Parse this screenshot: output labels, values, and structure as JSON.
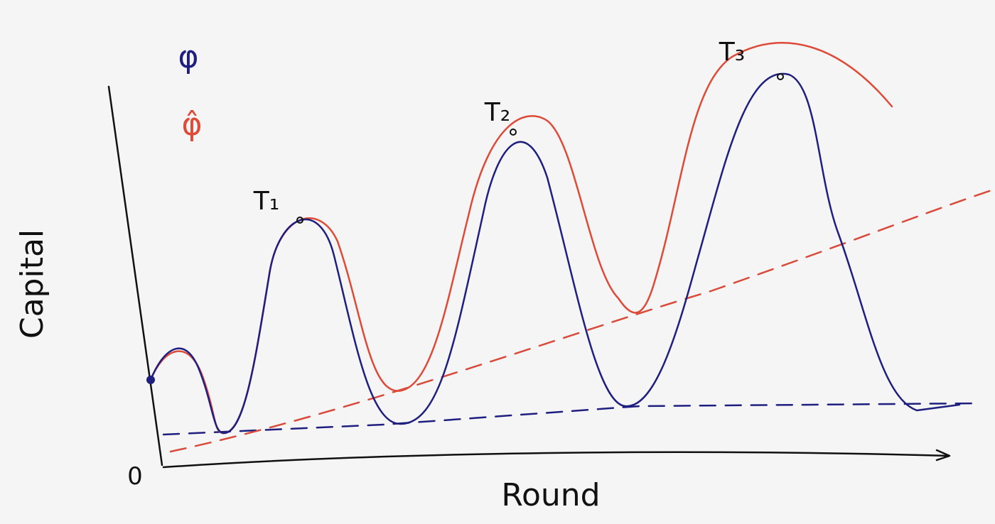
{
  "axes": {
    "x_label": "Round",
    "y_label": "Capital",
    "origin": "0"
  },
  "legend": [
    {
      "label": "φ"
    },
    {
      "label": "φ̂"
    }
  ],
  "annotations": [
    "T₁",
    "T₂",
    "T₃"
  ]
}
